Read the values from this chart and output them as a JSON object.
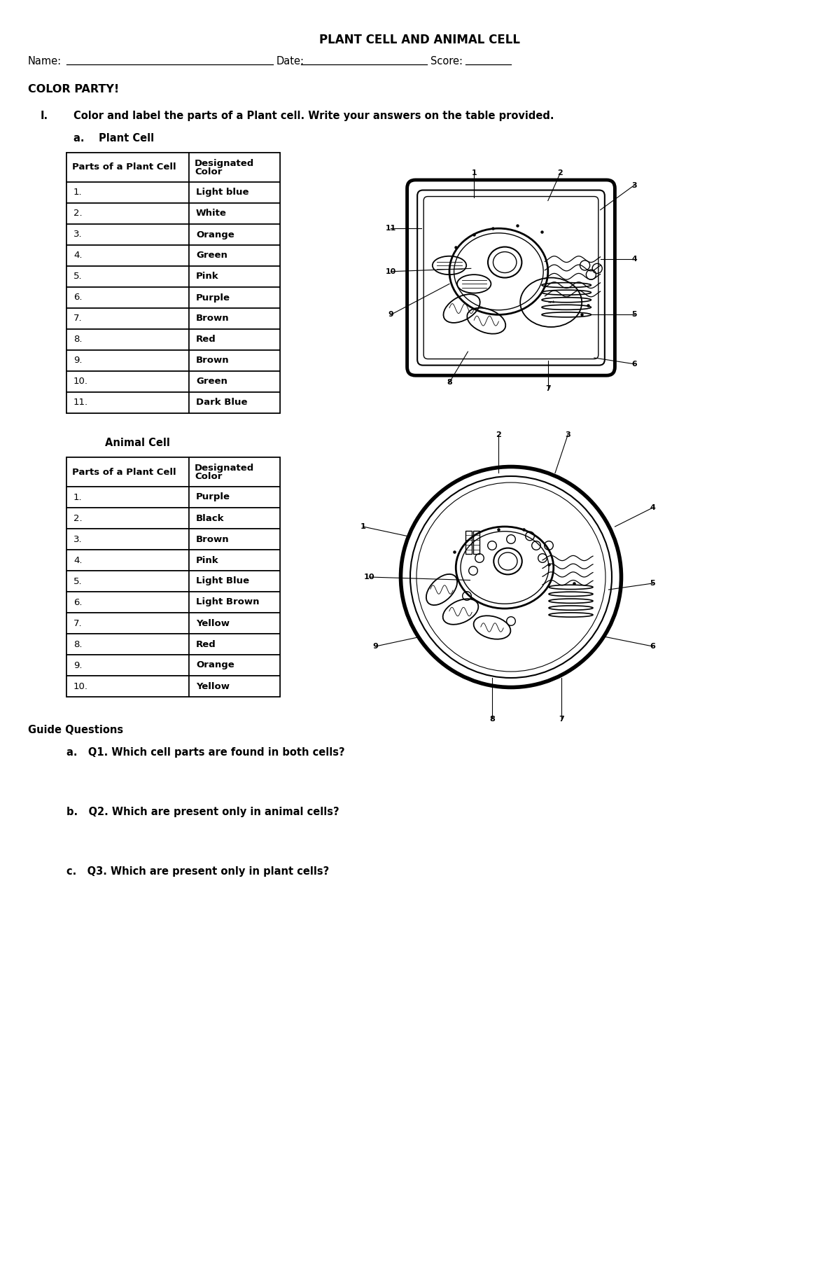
{
  "title": "PLANT CELL AND ANIMAL CELL",
  "name_label": "Name:",
  "date_label": "Date:",
  "score_label": "Score:",
  "section_label": "COLOR PARTY!",
  "instruction_num": "I.",
  "instruction_text": "Color and label the parts of a Plant cell. Write your answers on the table provided.",
  "plant_cell_label": "a.    Plant Cell",
  "animal_cell_label": "Animal Cell",
  "plant_table_header": [
    "Parts of a Plant Cell",
    "Designated\nColor"
  ],
  "plant_rows": [
    [
      "1.",
      "Light blue"
    ],
    [
      "2.",
      "White"
    ],
    [
      "3.",
      "Orange"
    ],
    [
      "4.",
      "Green"
    ],
    [
      "5.",
      "Pink"
    ],
    [
      "6.",
      "Purple"
    ],
    [
      "7.",
      "Brown"
    ],
    [
      "8.",
      "Red"
    ],
    [
      "9.",
      "Brown"
    ],
    [
      "10.",
      "Green"
    ],
    [
      "11.",
      "Dark Blue"
    ]
  ],
  "animal_table_header": [
    "Parts of a Plant Cell",
    "Designated\nColor"
  ],
  "animal_rows": [
    [
      "1.",
      "Purple"
    ],
    [
      "2.",
      "Black"
    ],
    [
      "3.",
      "Brown"
    ],
    [
      "4.",
      "Pink"
    ],
    [
      "5.",
      "Light Blue"
    ],
    [
      "6.",
      "Light Brown"
    ],
    [
      "7.",
      "Yellow"
    ],
    [
      "8.",
      "Red"
    ],
    [
      "9.",
      "Orange"
    ],
    [
      "10.",
      "Yellow"
    ]
  ],
  "guide_title": "Guide Questions",
  "q1": "a.   Q1. Which cell parts are found in both cells?",
  "q2": "b.   Q2. Which are present only in animal cells?",
  "q3": "c.   Q3. Which are present only in plant cells?",
  "bg_color": "#ffffff",
  "text_color": "#000000"
}
